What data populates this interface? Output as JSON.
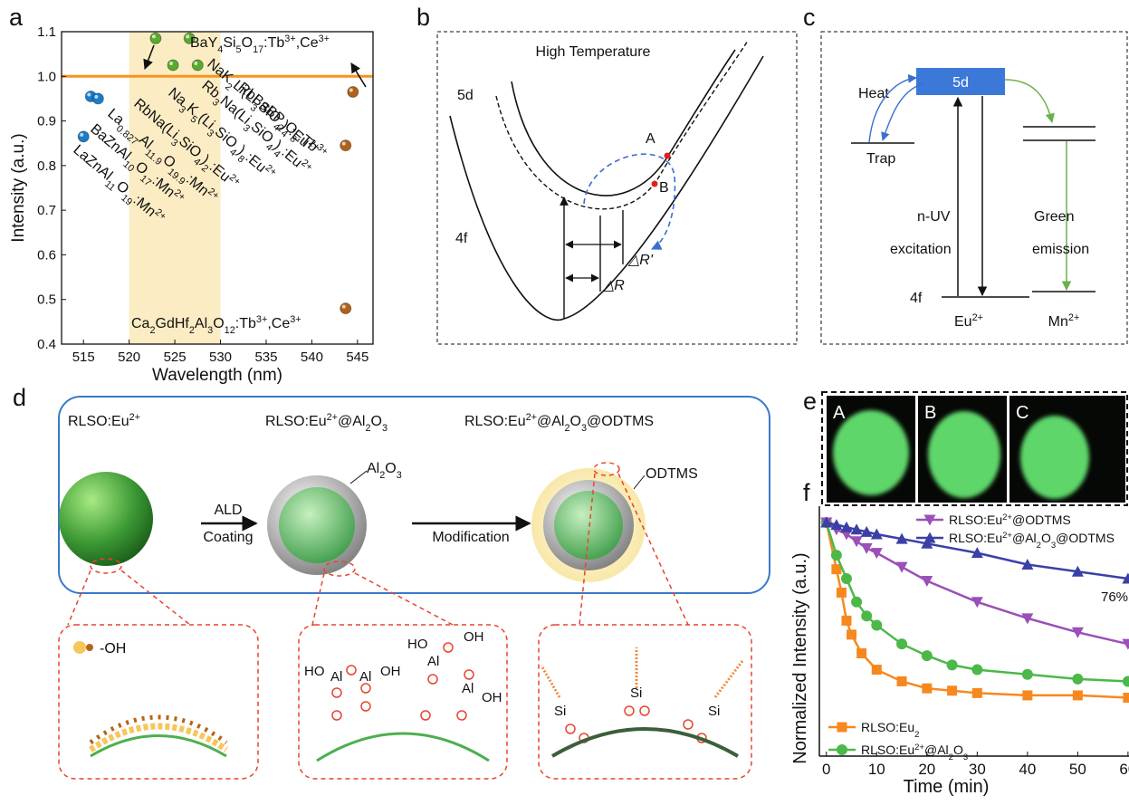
{
  "chart_data": [
    {
      "type": "scatter",
      "x": [
        515.8,
        516.6,
        515.0,
        522.9,
        526.6,
        524.8,
        527.5,
        544.5,
        543.7,
        543.7
      ],
      "values": [
        0.955,
        0.95,
        0.865,
        1.085,
        1.085,
        1.025,
        1.025,
        0.965,
        0.845,
        0.48
      ],
      "colors": [
        "#1a7cc9",
        "#1a7cc9",
        "#1a7cc9",
        "#5aaa2c",
        "#5aaa2c",
        "#5aaa2c",
        "#5aaa2c",
        "#b0621a",
        "#b0621a",
        "#b0621a"
      ],
      "xlabel": "Wavelength (nm)",
      "ylabel": "Intensity (a.u.)",
      "xlim": [
        512.6,
        546.7
      ],
      "ylim": [
        0.4,
        1.1
      ],
      "xticks": [
        515,
        520,
        525,
        530,
        535,
        540,
        545
      ],
      "yticks": [
        0.4,
        0.5,
        0.6,
        0.7,
        0.8,
        0.9,
        {
          "value": 1,
          "label": "1.0"
        },
        1.1
      ],
      "reference_line": {
        "value": 1,
        "color": "#f7941d"
      },
      "highlight": {
        "range": [
          520,
          530
        ],
        "color": "#fcecc4"
      },
      "annotations": [
        "BaY4Si5O17:Tb3+,Ce3+",
        "NaK2Li(Li3SiO4)4:Eu2+",
        "RbBaBP2O8:Tb3+",
        "Rb3Na(Li3SiO4)4:Eu2+",
        "Na3K5(Li3SiO4)8:Eu2+",
        "RbNa(Li3SiO4)2:Eu2+",
        "La0.827Al11.9O19.9:Mn2+",
        "BaZnAl10O17:Mn2+",
        "LaZnAl11O19:Mn2+",
        "Ca2GdHf2Al3O12:Tb3+,Ce3+"
      ]
    },
    {
      "type": "line",
      "xlabel": "Time (min)",
      "ylabel": "Normalized Intensity (a.u.)",
      "xlim": [
        -1.4,
        60.2
      ],
      "ylim": [
        0,
        1.07
      ],
      "xticks": [
        0,
        10,
        20,
        30,
        40,
        50,
        60
      ],
      "annotation": "76%",
      "series": [
        {
          "name": "RLSO:Eu2",
          "color": "#f7881f",
          "marker": "square",
          "x": [
            0,
            2,
            3,
            4,
            5,
            7,
            10,
            15,
            20,
            25,
            30,
            40,
            50,
            60
          ],
          "values": [
            1.0,
            0.8,
            0.7,
            0.58,
            0.52,
            0.44,
            0.37,
            0.32,
            0.29,
            0.28,
            0.27,
            0.26,
            0.26,
            0.25
          ]
        },
        {
          "name": "RLSO:Eu2+@Al2O3",
          "color": "#4cb848",
          "marker": "circle",
          "x": [
            0,
            2,
            4,
            6,
            8,
            10,
            15,
            20,
            25,
            30,
            40,
            50,
            60
          ],
          "values": [
            1.0,
            0.86,
            0.76,
            0.66,
            0.6,
            0.56,
            0.48,
            0.43,
            0.39,
            0.37,
            0.35,
            0.33,
            0.32
          ]
        },
        {
          "name": "RLSO:Eu2+@ODTMS",
          "color": "#9b4fb8",
          "marker": "triangle-down",
          "x": [
            0,
            2,
            4,
            6,
            8,
            10,
            15,
            20,
            30,
            40,
            50,
            60
          ],
          "values": [
            1.0,
            0.97,
            0.95,
            0.92,
            0.89,
            0.87,
            0.81,
            0.75,
            0.66,
            0.59,
            0.53,
            0.48
          ]
        },
        {
          "name": "RLSO:Eu2+@Al2O3@ODTMS",
          "color": "#3a40a6",
          "marker": "triangle-up",
          "x": [
            0,
            2,
            4,
            6,
            8,
            10,
            15,
            20,
            30,
            40,
            50,
            60
          ],
          "values": [
            1.0,
            0.99,
            0.98,
            0.97,
            0.96,
            0.95,
            0.93,
            0.91,
            0.87,
            0.82,
            0.79,
            0.76
          ]
        }
      ]
    }
  ],
  "panel_labels": [
    "a",
    "b",
    "c",
    "d",
    "e",
    "f"
  ],
  "diagram_b": {
    "title": "High Temperature",
    "upper": "5d",
    "lower": "4f",
    "point_a": "A",
    "point_b": "B",
    "delta_r_prime": "△R'",
    "delta_r": "△R"
  },
  "diagram_c": {
    "level_5d": "5d",
    "heat": "Heat",
    "trap": "Trap",
    "excitation": [
      "n-UV",
      "excitation"
    ],
    "emission": [
      "Green",
      "emission"
    ],
    "level_4f": "4f",
    "eu": "Eu2+",
    "mn": "Mn2+"
  },
  "scheme_d": {
    "stages": [
      "RLSO:Eu2+",
      "RLSO:Eu2+@Al2O3",
      "RLSO:Eu2+@Al2O3@ODTMS"
    ],
    "shell": "Al2O3",
    "coating": "ODTMS",
    "step1": [
      "ALD",
      "Coating"
    ],
    "step2": "Modification",
    "hydroxyl": "-OH",
    "chem": [
      "HO",
      "Al",
      "Al",
      "OH",
      "HO",
      "Al",
      "OH",
      "Al",
      "OH",
      "Si",
      "Si",
      "Si"
    ]
  },
  "photos_e": {
    "labels": [
      "A",
      "B",
      "C"
    ]
  }
}
